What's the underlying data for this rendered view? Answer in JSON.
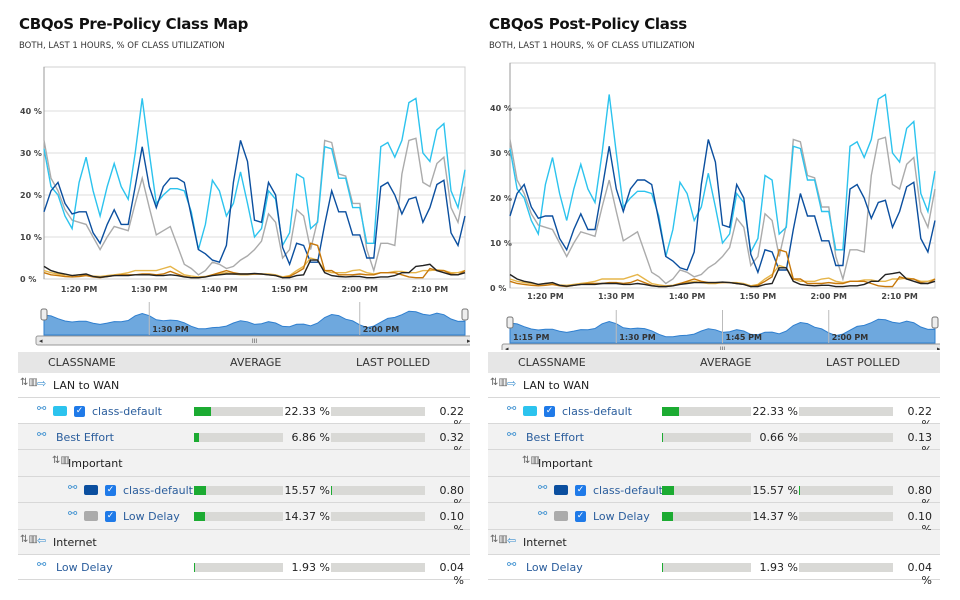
{
  "colors": {
    "light_blue": "#2cc3ee",
    "dark_blue": "#0b4f9f",
    "gray": "#ababab",
    "black": "#222222",
    "orange": "#c7780b",
    "gold": "#e6b54a",
    "bar_fill": "#1cab32",
    "navigator": "#6ea8de"
  },
  "table_headers": {
    "classname": "CLASSNAME",
    "average": "AVERAGE",
    "last_polled": "LAST POLLED"
  },
  "panels": [
    {
      "title": "CBQoS Pre-Policy Class Map",
      "subtitle": "BOTH, LAST 1 HOURS, % OF CLASS UTILIZATION",
      "navigator_labels": [
        "1:30 PM",
        "2:00 PM"
      ],
      "scroll_grip": "III",
      "rows": [
        {
          "kind": "group",
          "level": 0,
          "icon": "direction-out-icon",
          "label": "LAN to WAN"
        },
        {
          "kind": "class",
          "level": 1,
          "label": "class-default",
          "swatch": "#2cc3ee",
          "checked": true,
          "average": "22.33 %",
          "average_pct": 22.33,
          "last": "0.22 %",
          "last_pct": 0.22
        },
        {
          "kind": "class",
          "level": 1,
          "label": "Best Effort",
          "average": "6.86 %",
          "average_pct": 6.86,
          "last": "0.32 %",
          "last_pct": 0.32
        },
        {
          "kind": "group",
          "level": 2,
          "label": "Important"
        },
        {
          "kind": "class",
          "level": 3,
          "label": "class-default",
          "swatch": "#0b4f9f",
          "checked": true,
          "average": "15.57 %",
          "average_pct": 15.57,
          "last": "0.80 %",
          "last_pct": 0.8
        },
        {
          "kind": "class",
          "level": 3,
          "label": "Low Delay",
          "swatch": "#ababab",
          "checked": true,
          "average": "14.37 %",
          "average_pct": 14.37,
          "last": "0.10 %",
          "last_pct": 0.1
        },
        {
          "kind": "group",
          "level": 0,
          "icon": "direction-in-icon",
          "label": "Internet"
        },
        {
          "kind": "class",
          "level": 1,
          "label": "Low Delay",
          "average": "1.93 %",
          "average_pct": 1.93,
          "last": "0.04 %",
          "last_pct": 0.04
        }
      ]
    },
    {
      "title": "CBQoS Post-Policy Class",
      "subtitle": "BOTH, LAST 1 HOURS, % OF CLASS UTILIZATION",
      "navigator_labels": [
        "1:15 PM",
        "1:30 PM",
        "1:45 PM",
        "2:00 PM"
      ],
      "scroll_grip": "III",
      "rows": [
        {
          "kind": "group",
          "level": 0,
          "icon": "direction-out-icon",
          "label": "LAN to WAN"
        },
        {
          "kind": "class",
          "level": 1,
          "label": "class-default",
          "swatch": "#2cc3ee",
          "checked": true,
          "average": "22.33 %",
          "average_pct": 22.33,
          "last": "0.22 %",
          "last_pct": 0.22
        },
        {
          "kind": "class",
          "level": 1,
          "label": "Best Effort",
          "average": "0.66 %",
          "average_pct": 0.66,
          "last": "0.13 %",
          "last_pct": 0.13
        },
        {
          "kind": "group",
          "level": 2,
          "label": "Important"
        },
        {
          "kind": "class",
          "level": 3,
          "label": "class-default",
          "swatch": "#0b4f9f",
          "checked": true,
          "average": "15.57 %",
          "average_pct": 15.57,
          "last": "0.80 %",
          "last_pct": 0.8
        },
        {
          "kind": "class",
          "level": 3,
          "label": "Low Delay",
          "swatch": "#ababab",
          "checked": true,
          "average": "14.37 %",
          "average_pct": 14.37,
          "last": "0.10 %",
          "last_pct": 0.1
        },
        {
          "kind": "group",
          "level": 0,
          "icon": "direction-in-icon",
          "label": "Internet"
        },
        {
          "kind": "class",
          "level": 1,
          "label": "Low Delay",
          "average": "1.93 %",
          "average_pct": 1.93,
          "last": "0.04 %",
          "last_pct": 0.04
        }
      ]
    }
  ],
  "chart_data": [
    {
      "type": "line",
      "ylim": [
        0,
        50
      ],
      "yticks": [
        "0 %",
        "10 %",
        "20 %",
        "30 %",
        "40 %"
      ],
      "ytick_values": [
        0,
        10,
        20,
        30,
        40
      ],
      "xticks": [
        "1:20 PM",
        "1:30 PM",
        "1:40 PM",
        "1:50 PM",
        "2:00 PM",
        "2:10 PM"
      ],
      "xtick_minutes": [
        5,
        15,
        25,
        35,
        45,
        55
      ],
      "x_start": "1:15 PM",
      "x_step_minutes": 1,
      "grid": true,
      "series": [
        {
          "color": "#ababab",
          "values": [
            33,
            24,
            21,
            16.5,
            14,
            13.5,
            13,
            10,
            7,
            10,
            12.5,
            12,
            11.5,
            18,
            24,
            17,
            10.5,
            11.5,
            12.5,
            8,
            3.5,
            2.5,
            1,
            2,
            4,
            3.5,
            2.5,
            3,
            4.5,
            5.5,
            7,
            9,
            15.5,
            13.5,
            5,
            7,
            16.5,
            15,
            7,
            14,
            33,
            32.5,
            25,
            24.5,
            18,
            18,
            7,
            2,
            8.5,
            8.5,
            8,
            25,
            33,
            33.5,
            23,
            22,
            27.5,
            29,
            17,
            13.5,
            22
          ]
        },
        {
          "color": "#2cc3ee",
          "values": [
            31,
            22,
            20,
            15,
            12,
            23,
            29,
            21,
            15,
            22,
            27.5,
            22,
            19,
            30,
            43,
            30,
            18,
            20,
            21.5,
            21.5,
            21,
            16,
            7,
            13,
            23.5,
            21,
            15,
            18,
            25.5,
            18,
            10,
            12,
            21,
            19,
            8,
            11,
            25,
            24,
            12,
            13.5,
            31.5,
            31,
            24,
            24,
            17,
            17,
            8.5,
            8.5,
            31.5,
            32.5,
            29,
            33,
            42,
            43,
            30,
            28,
            35.5,
            37,
            21,
            17,
            26
          ]
        },
        {
          "color": "#0b4f9f",
          "values": [
            16,
            21,
            23,
            18,
            15.5,
            16,
            16,
            11,
            8.5,
            13,
            16.5,
            13,
            13,
            22,
            31.5,
            22,
            17,
            22,
            24,
            24,
            23,
            15,
            7,
            6,
            4.5,
            4,
            8,
            23,
            33,
            28,
            14,
            13.5,
            23,
            20,
            7.5,
            3.5,
            8.5,
            8,
            4,
            4,
            13,
            21,
            16,
            16,
            10.5,
            10.5,
            5,
            5,
            22,
            23,
            20,
            15.5,
            19,
            19.5,
            13.5,
            17,
            22.5,
            23.5,
            11,
            8,
            15
          ]
        },
        {
          "color": "#e6b54a",
          "values": [
            2,
            1.5,
            1.2,
            1,
            0.8,
            1,
            1,
            0.7,
            0.6,
            0.8,
            1,
            1.2,
            1.5,
            2,
            2,
            2,
            2,
            2.5,
            3,
            2,
            1,
            0.7,
            0.5,
            0.6,
            1,
            1.2,
            1.5,
            1.2,
            1,
            1,
            1.2,
            1.2,
            1.2,
            1,
            0.5,
            0.8,
            2,
            3,
            5,
            4.5,
            2,
            1.5,
            1.5,
            1.5,
            2,
            2.2,
            1.5,
            1.2,
            1.5,
            1.5,
            1.8,
            1.8,
            1.5,
            1.5,
            2,
            2,
            2.2,
            2,
            1.5,
            1.5,
            2
          ]
        },
        {
          "color": "#c7780b",
          "values": [
            1.5,
            1,
            0.8,
            0.6,
            0.5,
            0.6,
            0.8,
            0.5,
            0.3,
            0.6,
            0.8,
            1,
            1,
            1,
            1.2,
            1.2,
            1,
            1.2,
            1.8,
            1.2,
            0.6,
            0.3,
            0.3,
            0.5,
            1,
            1.5,
            2,
            1.5,
            1.2,
            1.2,
            1.2,
            1.2,
            1,
            0.8,
            0.3,
            0.6,
            1.5,
            2.5,
            8.5,
            8,
            2,
            2,
            1,
            1,
            1,
            1.2,
            1,
            1,
            1.5,
            1.5,
            1.5,
            1,
            0.5,
            0.3,
            0.3,
            2.5,
            2,
            2,
            1.2,
            1,
            2
          ]
        },
        {
          "color": "#222222",
          "values": [
            3,
            2,
            1.5,
            1.2,
            0.8,
            1,
            1.2,
            0.6,
            0.4,
            0.6,
            0.8,
            0.8,
            0.8,
            1,
            1,
            1,
            0.8,
            0.8,
            1,
            0.8,
            0.5,
            0.3,
            0.3,
            0.5,
            0.8,
            1,
            1.2,
            1.2,
            1.2,
            1.2,
            1.3,
            1.2,
            1,
            0.8,
            0.3,
            0.3,
            0.8,
            1,
            4.5,
            4.5,
            1.5,
            0.8,
            0.6,
            0.5,
            0.6,
            0.6,
            0.3,
            0.3,
            0.5,
            0.5,
            0.8,
            1.5,
            1.5,
            3,
            3.2,
            3.5,
            2,
            1.5,
            1,
            1,
            1.5
          ]
        }
      ]
    },
    {
      "type": "line",
      "ylim": [
        0,
        50
      ],
      "yticks": [
        "0 %",
        "10 %",
        "20 %",
        "30 %",
        "40 %"
      ],
      "ytick_values": [
        0,
        10,
        20,
        30,
        40
      ],
      "xticks": [
        "1:20 PM",
        "1:30 PM",
        "1:40 PM",
        "1:50 PM",
        "2:00 PM",
        "2:10 PM"
      ],
      "xtick_minutes": [
        5,
        15,
        25,
        35,
        45,
        55
      ],
      "x_start": "1:15 PM",
      "x_step_minutes": 1,
      "grid": true,
      "series": [
        {
          "color": "#ababab",
          "values": [
            33,
            24,
            21,
            16.5,
            14,
            13.5,
            13,
            10,
            7,
            10,
            12.5,
            12,
            11.5,
            18,
            24,
            17,
            10.5,
            11.5,
            12.5,
            8,
            3.5,
            2.5,
            1,
            2,
            4,
            3.5,
            2.5,
            3,
            4.5,
            5.5,
            7,
            9,
            15.5,
            13.5,
            5,
            7,
            16.5,
            15,
            7,
            14,
            33,
            32.5,
            25,
            24.5,
            18,
            18,
            7,
            2,
            8.5,
            8.5,
            8,
            25,
            33,
            33.5,
            23,
            22,
            27.5,
            29,
            17,
            13.5,
            22
          ]
        },
        {
          "color": "#2cc3ee",
          "values": [
            31,
            22,
            20,
            15,
            12,
            23,
            29,
            21,
            15,
            22,
            27.5,
            22,
            19,
            30,
            43,
            30,
            18,
            20,
            21.5,
            21.5,
            21,
            16,
            7,
            13,
            23.5,
            21,
            15,
            18,
            25.5,
            18,
            10,
            12,
            21,
            19,
            8,
            11,
            25,
            24,
            12,
            13.5,
            31.5,
            31,
            24,
            24,
            17,
            17,
            8.5,
            8.5,
            31.5,
            32.5,
            29,
            33,
            42,
            43,
            30,
            28,
            35.5,
            37,
            21,
            17,
            26
          ]
        },
        {
          "color": "#0b4f9f",
          "values": [
            16,
            21,
            23,
            18,
            15.5,
            16,
            16,
            11,
            8.5,
            13,
            16.5,
            13,
            13,
            22,
            31.5,
            22,
            17,
            22,
            24,
            24,
            23,
            15,
            7,
            6,
            4.5,
            4,
            8,
            23,
            33,
            28,
            14,
            13.5,
            23,
            20,
            7.5,
            3.5,
            8.5,
            8,
            4,
            4,
            13,
            21,
            16,
            16,
            10.5,
            10.5,
            5,
            5,
            22,
            23,
            20,
            15.5,
            19,
            19.5,
            13.5,
            17,
            22.5,
            23.5,
            11,
            8,
            15
          ]
        },
        {
          "color": "#e6b54a",
          "values": [
            2,
            1.5,
            1.2,
            1,
            0.8,
            1,
            1,
            0.7,
            0.6,
            0.8,
            1,
            1.2,
            1.5,
            2,
            2,
            2,
            2,
            2.5,
            3,
            2,
            1,
            0.7,
            0.5,
            0.6,
            1,
            1.2,
            1.5,
            1.2,
            1,
            1,
            1.2,
            1.2,
            1.2,
            1,
            0.5,
            0.8,
            2,
            3,
            5,
            4.5,
            2,
            1.5,
            1.5,
            1.5,
            2,
            2.2,
            1.5,
            1.2,
            1.5,
            1.5,
            1.8,
            1.8,
            1.5,
            1.5,
            2,
            2,
            2.2,
            2,
            1.5,
            1.5,
            2
          ]
        },
        {
          "color": "#c7780b",
          "values": [
            1.5,
            1,
            0.8,
            0.6,
            0.5,
            0.6,
            0.8,
            0.5,
            0.3,
            0.6,
            0.8,
            1,
            1,
            1,
            1.2,
            1.2,
            1,
            1.2,
            1.8,
            1.2,
            0.6,
            0.3,
            0.3,
            0.5,
            1,
            1.5,
            2,
            1.5,
            1.2,
            1.2,
            1.2,
            1.2,
            1,
            0.8,
            0.3,
            0.6,
            1.5,
            2.5,
            8.5,
            8,
            2,
            2,
            1,
            1,
            1,
            1.2,
            1,
            1,
            1.5,
            1.5,
            1.5,
            1,
            0.5,
            0.3,
            0.3,
            2.5,
            2,
            2,
            1.2,
            1,
            2
          ]
        },
        {
          "color": "#222222",
          "values": [
            3,
            2,
            1.5,
            1.2,
            0.8,
            1,
            1.2,
            0.6,
            0.4,
            0.6,
            0.8,
            0.8,
            0.8,
            1,
            1,
            1,
            0.8,
            0.8,
            1,
            0.8,
            0.5,
            0.3,
            0.3,
            0.5,
            0.8,
            1,
            1.2,
            1.2,
            1.2,
            1.2,
            1.3,
            1.2,
            1,
            0.8,
            0.3,
            0.3,
            0.8,
            1,
            4.5,
            4.5,
            1.5,
            0.8,
            0.6,
            0.5,
            0.6,
            0.6,
            0.3,
            0.3,
            0.5,
            0.5,
            0.8,
            1.5,
            1.5,
            3,
            3.2,
            3.5,
            2,
            1.5,
            1,
            1,
            1.5
          ]
        }
      ]
    }
  ]
}
